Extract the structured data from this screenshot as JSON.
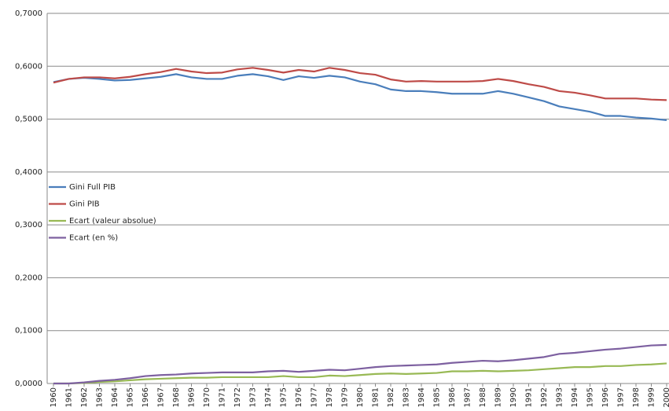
{
  "chart_data": {
    "type": "line",
    "categories": [
      "1960",
      "1961",
      "1962",
      "1963",
      "1964",
      "1965",
      "1966",
      "1967",
      "1968",
      "1969",
      "1970",
      "1971",
      "1972",
      "1973",
      "1974",
      "1975",
      "1976",
      "1977",
      "1978",
      "1979",
      "1980",
      "1981",
      "1982",
      "1983",
      "1984",
      "1985",
      "1986",
      "1987",
      "1988",
      "1989",
      "1990",
      "1991",
      "1992",
      "1993",
      "1994",
      "1995",
      "1996",
      "1997",
      "1998",
      "1999",
      "2000"
    ],
    "series": [
      {
        "name": "Gini Full PIB",
        "color": "#4a7ebb",
        "values": [
          0.57,
          0.576,
          0.578,
          0.576,
          0.573,
          0.574,
          0.577,
          0.58,
          0.585,
          0.579,
          0.576,
          0.576,
          0.582,
          0.585,
          0.581,
          0.574,
          0.581,
          0.578,
          0.582,
          0.579,
          0.571,
          0.566,
          0.556,
          0.553,
          0.553,
          0.551,
          0.548,
          0.548,
          0.548,
          0.553,
          0.548,
          0.541,
          0.534,
          0.524,
          0.519,
          0.514,
          0.506,
          0.506,
          0.503,
          0.501,
          0.498
        ]
      },
      {
        "name": "Gini PIB",
        "color": "#be4b48",
        "values": [
          0.569,
          0.576,
          0.579,
          0.579,
          0.577,
          0.58,
          0.585,
          0.589,
          0.595,
          0.59,
          0.587,
          0.588,
          0.594,
          0.597,
          0.593,
          0.588,
          0.593,
          0.59,
          0.597,
          0.593,
          0.587,
          0.584,
          0.575,
          0.571,
          0.572,
          0.571,
          0.571,
          0.571,
          0.572,
          0.576,
          0.572,
          0.566,
          0.561,
          0.553,
          0.55,
          0.545,
          0.539,
          0.539,
          0.539,
          0.537,
          0.536
        ]
      },
      {
        "name": "Ecart (valeur absolue)",
        "color": "#98b954",
        "values": [
          0.0,
          0.0,
          0.001,
          0.003,
          0.004,
          0.006,
          0.008,
          0.009,
          0.01,
          0.011,
          0.011,
          0.012,
          0.012,
          0.012,
          0.012,
          0.014,
          0.012,
          0.012,
          0.015,
          0.014,
          0.016,
          0.018,
          0.019,
          0.018,
          0.019,
          0.02,
          0.023,
          0.023,
          0.024,
          0.023,
          0.024,
          0.025,
          0.027,
          0.029,
          0.031,
          0.031,
          0.033,
          0.033,
          0.035,
          0.036,
          0.038
        ]
      },
      {
        "name": "Ecart (en %)",
        "color": "#7d60a0",
        "values": [
          0.0,
          0.0,
          0.002,
          0.005,
          0.007,
          0.01,
          0.014,
          0.016,
          0.017,
          0.019,
          0.02,
          0.021,
          0.021,
          0.021,
          0.023,
          0.024,
          0.022,
          0.024,
          0.026,
          0.025,
          0.028,
          0.031,
          0.033,
          0.034,
          0.035,
          0.036,
          0.039,
          0.041,
          0.043,
          0.042,
          0.044,
          0.047,
          0.05,
          0.056,
          0.058,
          0.061,
          0.064,
          0.066,
          0.069,
          0.072,
          0.073
        ]
      }
    ],
    "ylim": [
      0,
      0.7
    ],
    "yticks": [
      {
        "value": 0,
        "label": "0,0000"
      },
      {
        "value": 0.1,
        "label": "0,1000"
      },
      {
        "value": 0.2,
        "label": "0,2000"
      },
      {
        "value": 0.3,
        "label": "0,3000"
      },
      {
        "value": 0.4,
        "label": "0,4000"
      },
      {
        "value": 0.5,
        "label": "0,5000"
      },
      {
        "value": 0.6,
        "label": "0,6000"
      },
      {
        "value": 0.7,
        "label": "0,7000"
      }
    ],
    "grid": true,
    "legend": "left"
  }
}
